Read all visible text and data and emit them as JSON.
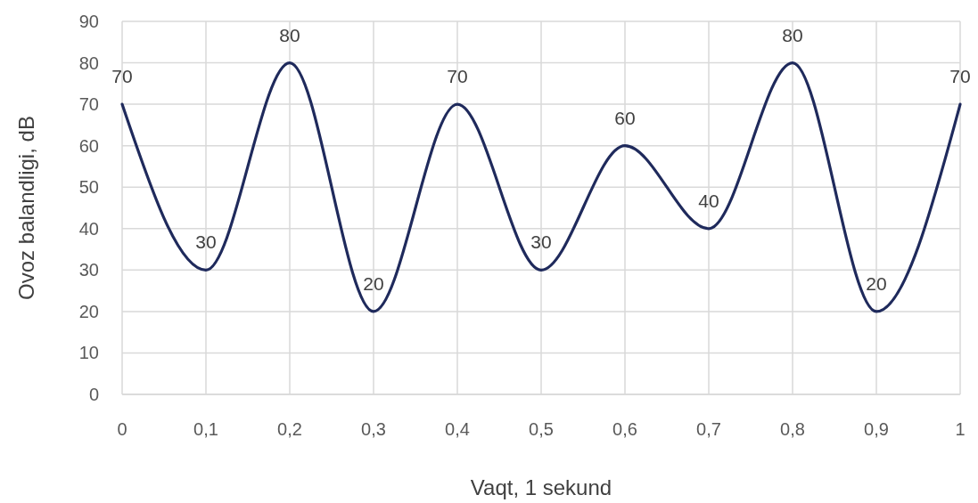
{
  "chart_data": {
    "type": "line",
    "xlabel": "Vaqt, 1 sekund",
    "ylabel": "Ovoz balandligi, dB",
    "x": [
      0,
      0.1,
      0.2,
      0.3,
      0.4,
      0.5,
      0.6,
      0.7,
      0.8,
      0.9,
      1
    ],
    "series": [
      {
        "color": "#1f2a5c",
        "values": [
          70,
          30,
          80,
          20,
          70,
          30,
          60,
          40,
          80,
          20,
          70
        ]
      }
    ],
    "xlim": [
      0,
      1
    ],
    "xticks": [
      0,
      {
        "value": 0.1,
        "label": "0,1"
      },
      {
        "value": 0.2,
        "label": "0,2"
      },
      {
        "value": 0.3,
        "label": "0,3"
      },
      {
        "value": 0.4,
        "label": "0,4"
      },
      {
        "value": 0.5,
        "label": "0,5"
      },
      {
        "value": 0.6,
        "label": "0,6"
      },
      {
        "value": 0.7,
        "label": "0,7"
      },
      {
        "value": 0.8,
        "label": "0,8"
      },
      {
        "value": 0.9,
        "label": "0,9"
      },
      1
    ],
    "ylim": [
      0,
      90
    ],
    "yticks": [
      0,
      10,
      20,
      30,
      40,
      50,
      60,
      70,
      80,
      90
    ],
    "grid": true,
    "data_labels": true,
    "marker": "none",
    "line_style": "solid"
  }
}
